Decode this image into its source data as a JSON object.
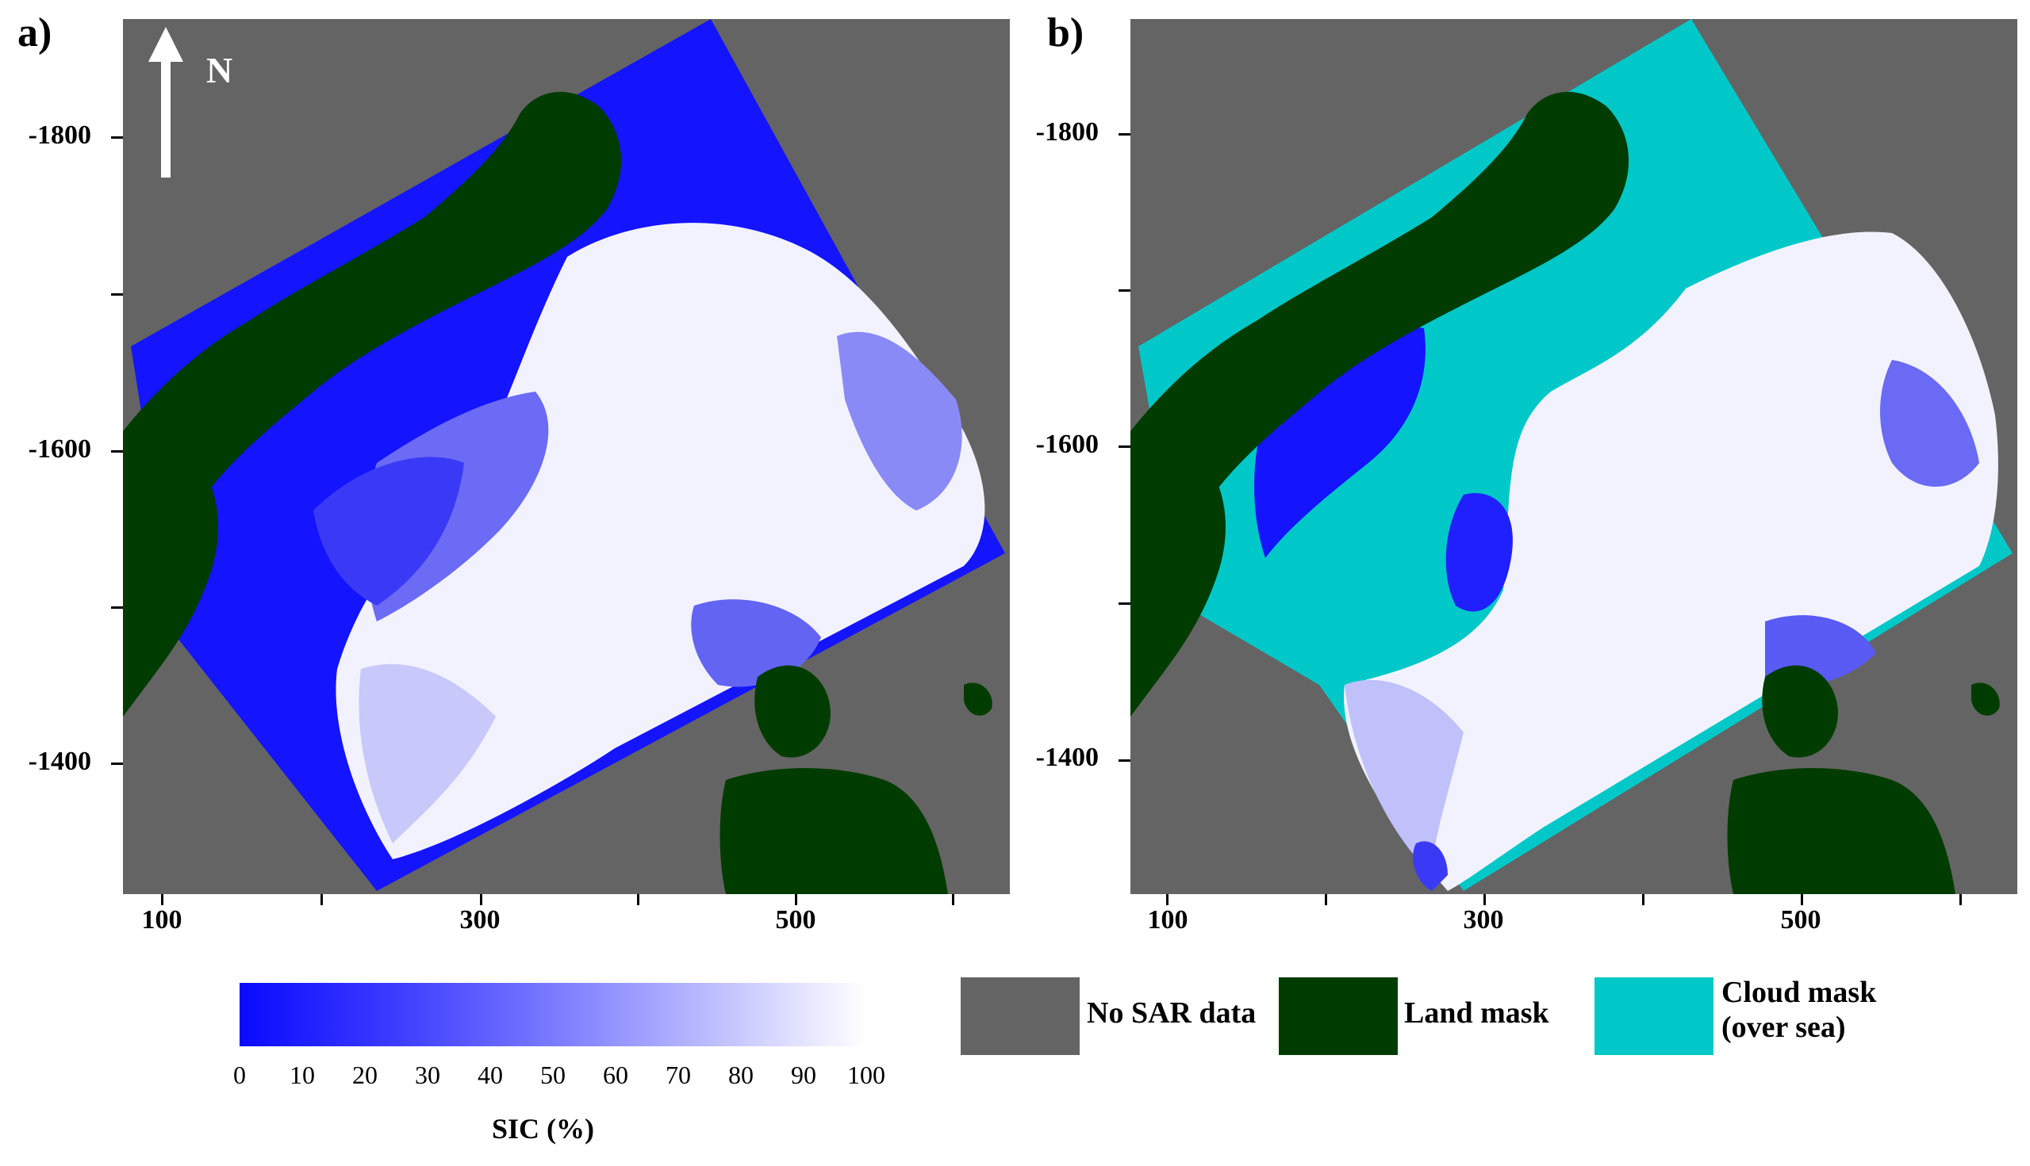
{
  "panels": [
    {
      "label": "a)",
      "y_ticks": [
        "-1800",
        "-1600",
        "-1400"
      ],
      "x_ticks": [
        "100",
        "300",
        "500"
      ],
      "north_arrow_label": "N",
      "mode": "sic"
    },
    {
      "label": "b)",
      "y_ticks": [
        "-1800",
        "-1600",
        "-1400"
      ],
      "x_ticks": [
        "100",
        "300",
        "500"
      ],
      "mode": "cloud"
    }
  ],
  "colorbar": {
    "title": "SIC (%)",
    "ticks": [
      "0",
      "10",
      "20",
      "30",
      "40",
      "50",
      "60",
      "70",
      "80",
      "90",
      "100"
    ],
    "color_low": "#0a0aff",
    "color_high": "#ffffff"
  },
  "legend": [
    {
      "label": "No SAR data",
      "color": "#646464"
    },
    {
      "label": "Land mask",
      "color": "#003c00"
    },
    {
      "label": "Cloud mask (over sea)",
      "color": "#00c8c8",
      "lines": [
        "Cloud mask",
        "(over sea)"
      ]
    }
  ],
  "colors": {
    "no_data": "#646464",
    "land": "#003c00",
    "cloud": "#00c8c8",
    "open_water": "#0a0aff"
  }
}
